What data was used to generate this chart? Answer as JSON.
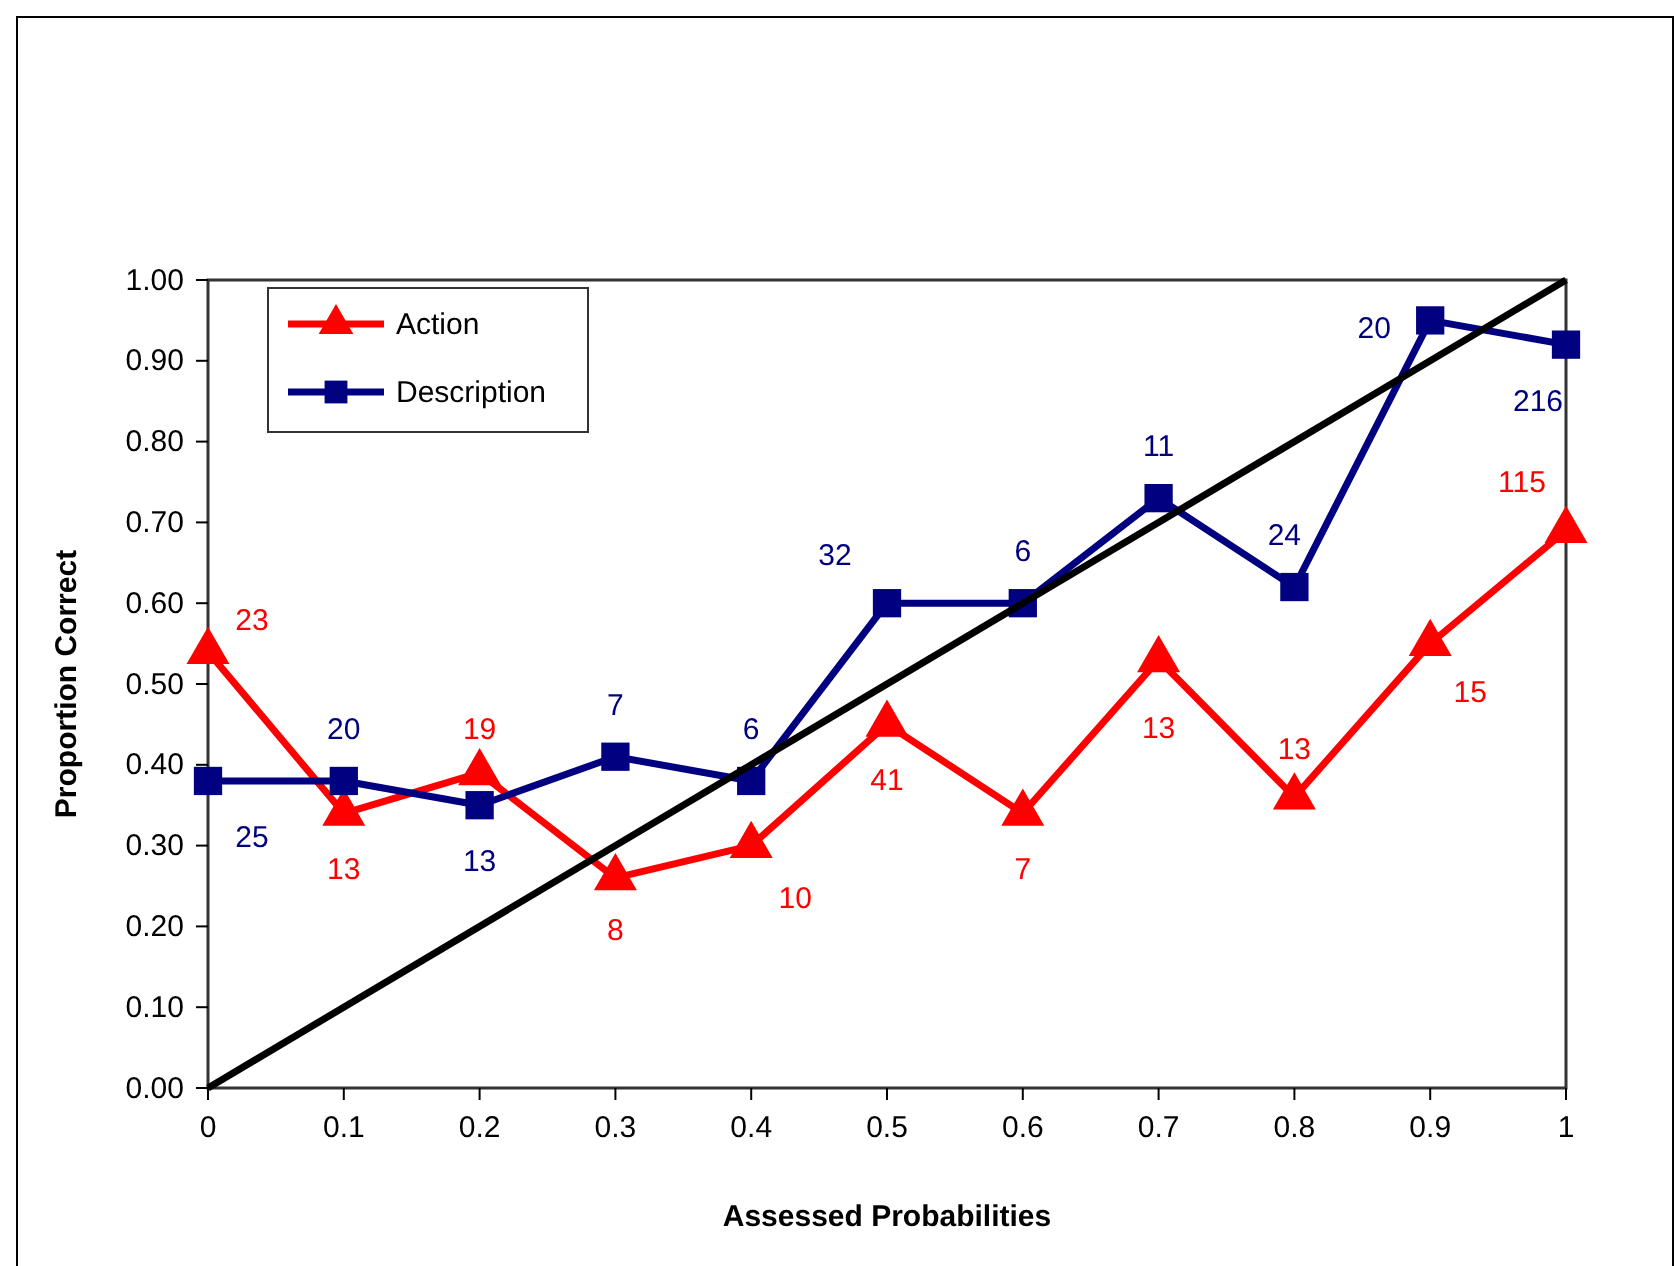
{
  "chart_data": {
    "type": "line",
    "xlabel": "Assessed Probabilities",
    "ylabel": "Proportion Correct",
    "x": [
      0,
      0.1,
      0.2,
      0.3,
      0.4,
      0.5,
      0.6,
      0.7,
      0.8,
      0.9,
      1
    ],
    "series": [
      {
        "name": "Action",
        "color": "#ff0000",
        "marker": "triangle",
        "values": [
          0.54,
          0.34,
          0.39,
          0.26,
          0.3,
          0.45,
          0.34,
          0.53,
          0.36,
          0.55,
          0.69
        ]
      },
      {
        "name": "Description",
        "color": "#000080",
        "marker": "square",
        "values": [
          0.38,
          0.38,
          0.35,
          0.41,
          0.38,
          0.6,
          0.6,
          0.73,
          0.62,
          0.95,
          0.92
        ]
      },
      {
        "color": "#000000",
        "marker": "none",
        "x": [
          0,
          1
        ],
        "values": [
          0,
          1
        ]
      }
    ],
    "xlim": [
      0,
      1
    ],
    "xticks": [
      0,
      0.1,
      0.2,
      0.3,
      0.4,
      0.5,
      0.6,
      0.7,
      0.8,
      0.9,
      1
    ],
    "ylim": [
      0,
      1
    ],
    "yticks": [
      {
        "value": 0,
        "label": "0.00"
      },
      {
        "value": 0.1,
        "label": "0.10"
      },
      {
        "value": 0.2,
        "label": "0.20"
      },
      {
        "value": 0.3,
        "label": "0.30"
      },
      {
        "value": 0.4,
        "label": "0.40"
      },
      {
        "value": 0.5,
        "label": "0.50"
      },
      {
        "value": 0.6,
        "label": "0.60"
      },
      {
        "value": 0.7,
        "label": "0.70"
      },
      {
        "value": 0.8,
        "label": "0.80"
      },
      {
        "value": 0.9,
        "label": "0.90"
      },
      {
        "value": 1,
        "label": "1.00"
      }
    ],
    "annotations": [
      {
        "text": "23",
        "x": 0,
        "y": 0.54
      },
      {
        "text": "13",
        "x": 0.1,
        "y": 0.34
      },
      {
        "text": "19",
        "x": 0.2,
        "y": 0.39
      },
      {
        "text": "8",
        "x": 0.3,
        "y": 0.26
      },
      {
        "text": "10",
        "x": 0.4,
        "y": 0.3
      },
      {
        "text": "41",
        "x": 0.5,
        "y": 0.45
      },
      {
        "text": "7",
        "x": 0.6,
        "y": 0.34
      },
      {
        "text": "13",
        "x": 0.7,
        "y": 0.53
      },
      {
        "text": "13",
        "x": 0.8,
        "y": 0.36
      },
      {
        "text": "15",
        "x": 0.9,
        "y": 0.55
      },
      {
        "text": "115",
        "x": 1,
        "y": 0.69
      },
      {
        "text": "25",
        "x": 0,
        "y": 0.38
      },
      {
        "text": "20",
        "x": 0.1,
        "y": 0.38
      },
      {
        "text": "13",
        "x": 0.2,
        "y": 0.35
      },
      {
        "text": "7",
        "x": 0.3,
        "y": 0.41
      },
      {
        "text": "6",
        "x": 0.4,
        "y": 0.38
      },
      {
        "text": "32",
        "x": 0.5,
        "y": 0.6
      },
      {
        "text": "6",
        "x": 0.6,
        "y": 0.6
      },
      {
        "text": "11",
        "x": 0.7,
        "y": 0.73
      },
      {
        "text": "24",
        "x": 0.8,
        "y": 0.62
      },
      {
        "text": "20",
        "x": 0.9,
        "y": 0.95
      },
      {
        "text": "216",
        "x": 1,
        "y": 0.92
      }
    ],
    "grid": false,
    "legend": "top left",
    "line_style": "solid"
  }
}
